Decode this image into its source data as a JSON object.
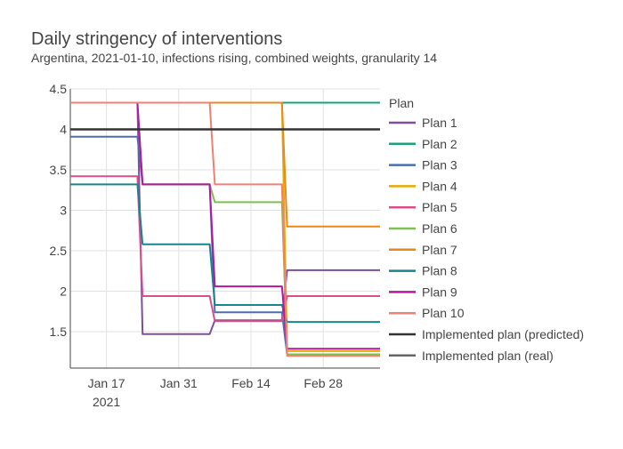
{
  "chart_data": {
    "type": "line",
    "title": "Daily stringency of interventions",
    "subtitle": "Argentina, 2021-01-10, infections rising, combined weights, granularity 14",
    "xlabel": "",
    "ylabel": "",
    "xlim": [
      "2021-01-10",
      "2021-03-11"
    ],
    "ylim": [
      1.05,
      4.5
    ],
    "x_ticks": [
      {
        "value": "2021-01-17",
        "label": "Jan 17",
        "sublabel": "2021"
      },
      {
        "value": "2021-01-31",
        "label": "Jan 31",
        "sublabel": ""
      },
      {
        "value": "2021-02-14",
        "label": "Feb 14",
        "sublabel": ""
      },
      {
        "value": "2021-02-28",
        "label": "Feb 28",
        "sublabel": ""
      }
    ],
    "y_ticks": [
      1.5,
      2,
      2.5,
      3,
      3.5,
      4,
      4.5
    ],
    "grid": true,
    "legend": {
      "title": "Plan",
      "placement": "right"
    },
    "series": [
      {
        "name": "Plan 1",
        "color": "#7b4f9d",
        "x": [
          "2021-01-10",
          "2021-01-23",
          "2021-01-24",
          "2021-02-06",
          "2021-02-07",
          "2021-02-20",
          "2021-02-21",
          "2021-03-11"
        ],
        "y": [
          4.33,
          4.33,
          1.47,
          1.47,
          1.64,
          1.64,
          2.26,
          2.26
        ]
      },
      {
        "name": "Plan 2",
        "color": "#1aa37a",
        "x": [
          "2021-01-10",
          "2021-03-11"
        ],
        "y": [
          4.33,
          4.33
        ]
      },
      {
        "name": "Plan 3",
        "color": "#4a6fb0",
        "x": [
          "2021-01-10",
          "2021-01-23",
          "2021-01-24",
          "2021-02-06",
          "2021-02-07",
          "2021-02-20",
          "2021-02-21",
          "2021-03-11"
        ],
        "y": [
          3.91,
          3.91,
          3.32,
          3.32,
          1.74,
          1.74,
          1.22,
          1.22
        ]
      },
      {
        "name": "Plan 4",
        "color": "#e6ab02",
        "x": [
          "2021-01-10",
          "2021-02-20",
          "2021-02-21",
          "2021-03-11"
        ],
        "y": [
          4.33,
          4.33,
          1.26,
          1.26
        ]
      },
      {
        "name": "Plan 5",
        "color": "#d94f8a",
        "x": [
          "2021-01-10",
          "2021-01-23",
          "2021-01-24",
          "2021-02-06",
          "2021-02-07",
          "2021-02-20",
          "2021-02-21",
          "2021-03-11"
        ],
        "y": [
          3.42,
          3.42,
          1.94,
          1.94,
          1.63,
          1.63,
          1.94,
          1.94
        ]
      },
      {
        "name": "Plan 6",
        "color": "#7fbf4d",
        "x": [
          "2021-01-10",
          "2021-01-23",
          "2021-01-24",
          "2021-02-06",
          "2021-02-07",
          "2021-02-20",
          "2021-02-21",
          "2021-03-11"
        ],
        "y": [
          4.33,
          4.33,
          3.32,
          3.32,
          3.1,
          3.1,
          1.22,
          1.22
        ]
      },
      {
        "name": "Plan 7",
        "color": "#e8891e",
        "x": [
          "2021-01-10",
          "2021-02-20",
          "2021-02-21",
          "2021-03-11"
        ],
        "y": [
          4.33,
          4.33,
          2.8,
          2.8
        ]
      },
      {
        "name": "Plan 8",
        "color": "#14868c",
        "x": [
          "2021-01-10",
          "2021-01-23",
          "2021-01-24",
          "2021-02-06",
          "2021-02-07",
          "2021-02-20",
          "2021-02-21",
          "2021-03-11"
        ],
        "y": [
          3.32,
          3.32,
          2.58,
          2.58,
          1.83,
          1.83,
          1.62,
          1.62
        ]
      },
      {
        "name": "Plan 9",
        "color": "#b5179e",
        "x": [
          "2021-01-10",
          "2021-01-23",
          "2021-01-24",
          "2021-02-06",
          "2021-02-07",
          "2021-02-20",
          "2021-02-21",
          "2021-03-11"
        ],
        "y": [
          4.33,
          4.33,
          3.32,
          3.32,
          2.06,
          2.06,
          1.29,
          1.29
        ]
      },
      {
        "name": "Plan 10",
        "color": "#f08070",
        "x": [
          "2021-01-10",
          "2021-02-06",
          "2021-02-07",
          "2021-02-20",
          "2021-02-21",
          "2021-03-11"
        ],
        "y": [
          4.33,
          4.33,
          3.32,
          3.32,
          1.2,
          1.2
        ]
      },
      {
        "name": "Implemented plan (predicted)",
        "color": "#333333",
        "x": [
          "2021-01-10",
          "2021-03-11"
        ],
        "y": [
          4.0,
          4.0
        ]
      },
      {
        "name": "Implemented plan (real)",
        "color": "#666666",
        "x": [],
        "y": []
      }
    ]
  }
}
